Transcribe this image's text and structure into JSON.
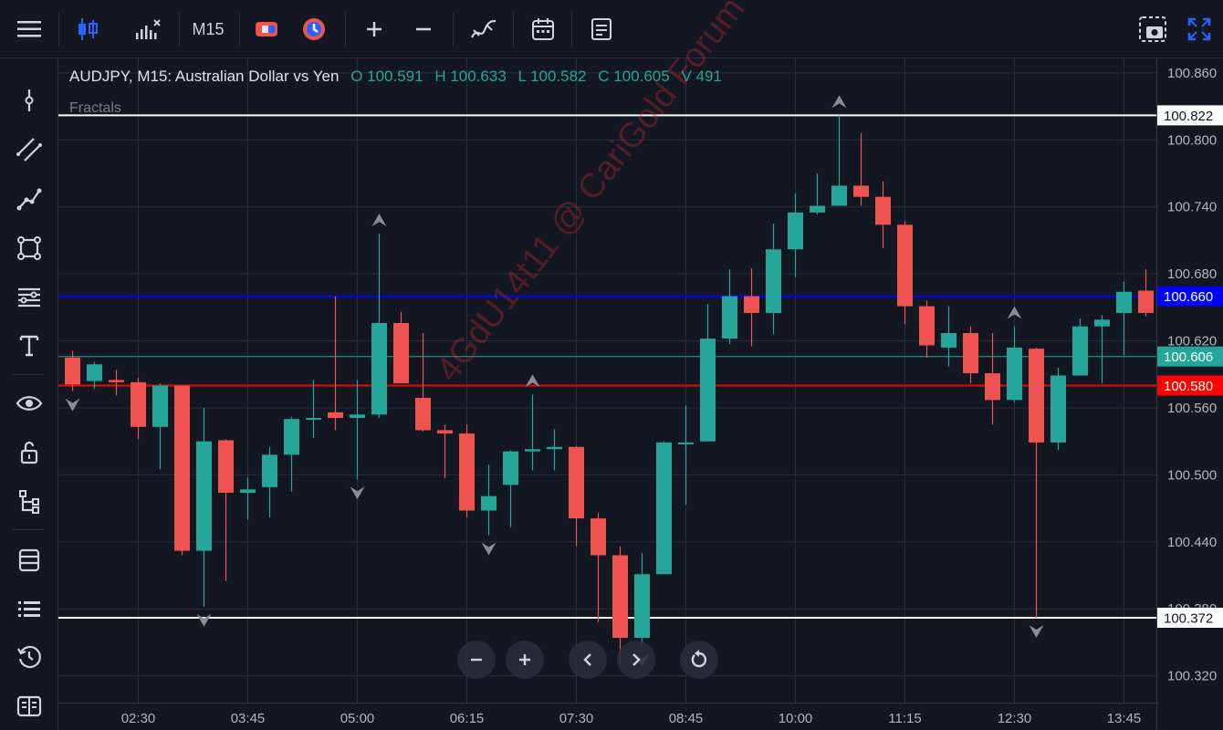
{
  "toolbar": {
    "timeframe": "M15"
  },
  "legend": {
    "symbol": "AUDJPY, M15: Australian Dollar vs Yen",
    "open": "O 100.591",
    "high": "H 100.633",
    "low": "L 100.582",
    "close": "C 100.605",
    "volume": "V 491"
  },
  "indicator_label": "Fractals",
  "watermark": "4GdU14t11 @ CariGold Forum",
  "price_labels": [
    {
      "text": "100.822",
      "value": 100.822,
      "bg": "#ffffff",
      "fg": "#131722",
      "line": "#ffffff"
    },
    {
      "text": "100.660",
      "value": 100.66,
      "bg": "#0000ff",
      "fg": "#ffffff",
      "line": "#0000ff"
    },
    {
      "text": "100.606",
      "value": 100.606,
      "bg": "#26a69a",
      "fg": "#ffffff",
      "line": "#26a69a"
    },
    {
      "text": "100.580",
      "value": 100.58,
      "bg": "#ff0000",
      "fg": "#ffffff",
      "line": "#ff0000"
    },
    {
      "text": "100.372",
      "value": 100.372,
      "bg": "#ffffff",
      "fg": "#131722",
      "line": "#ffffff"
    }
  ],
  "colors": {
    "up": "#26a69a",
    "down": "#ef5350",
    "grid": "#2a2e39",
    "axis_text": "#b2b5be",
    "bg": "#131722"
  },
  "chart_data": {
    "type": "candlestick",
    "ylim": [
      100.296,
      100.873
    ],
    "y_ticks": [
      100.86,
      100.8,
      100.74,
      100.68,
      100.62,
      100.56,
      100.5,
      100.44,
      100.38,
      100.32
    ],
    "y_tick_labels": [
      "100.860",
      "100.800",
      "100.740",
      "100.680",
      "100.620",
      "100.560",
      "100.500",
      "100.440",
      "100.380",
      "100.320"
    ],
    "x_ticks": [
      {
        "label": "02:30",
        "index": 3
      },
      {
        "label": "03:45",
        "index": 8
      },
      {
        "label": "05:00",
        "index": 13
      },
      {
        "label": "06:15",
        "index": 18
      },
      {
        "label": "07:30",
        "index": 23
      },
      {
        "label": "08:45",
        "index": 28
      },
      {
        "label": "10:00",
        "index": 33
      },
      {
        "label": "11:15",
        "index": 38
      },
      {
        "label": "12:30",
        "index": 43
      },
      {
        "label": "13:45",
        "index": 48
      }
    ],
    "candles": [
      [
        100.605,
        100.581,
        100.611,
        100.575
      ],
      [
        100.584,
        100.599,
        100.601,
        100.577
      ],
      [
        100.585,
        100.583,
        100.594,
        100.571
      ],
      [
        100.583,
        100.543,
        100.587,
        100.532
      ],
      [
        100.543,
        100.58,
        100.582,
        100.505
      ],
      [
        100.58,
        100.432,
        100.58,
        100.428
      ],
      [
        100.432,
        100.53,
        100.56,
        100.382
      ],
      [
        100.531,
        100.484,
        100.532,
        100.405
      ],
      [
        100.484,
        100.487,
        100.498,
        100.46
      ],
      [
        100.489,
        100.518,
        100.525,
        100.462
      ],
      [
        100.518,
        100.55,
        100.552,
        100.485
      ],
      [
        100.55,
        100.551,
        100.585,
        100.533
      ],
      [
        100.556,
        100.551,
        100.66,
        100.54
      ],
      [
        100.551,
        100.554,
        100.585,
        100.496
      ],
      [
        100.554,
        100.636,
        100.716,
        100.551
      ],
      [
        100.636,
        100.582,
        100.646,
        100.582
      ],
      [
        100.569,
        100.54,
        100.627,
        100.539
      ],
      [
        100.54,
        100.537,
        100.545,
        100.497
      ],
      [
        100.537,
        100.468,
        100.545,
        100.462
      ],
      [
        100.468,
        100.481,
        100.509,
        100.446
      ],
      [
        100.491,
        100.521,
        100.522,
        100.453
      ],
      [
        100.521,
        100.523,
        100.572,
        100.504
      ],
      [
        100.523,
        100.525,
        100.541,
        100.504
      ],
      [
        100.525,
        100.461,
        100.526,
        100.436
      ],
      [
        100.461,
        100.428,
        100.466,
        100.368
      ],
      [
        100.428,
        100.354,
        100.436,
        100.331
      ],
      [
        100.354,
        100.411,
        100.43,
        100.346
      ],
      [
        100.411,
        100.529,
        100.53,
        100.411
      ],
      [
        100.529,
        100.529,
        100.562,
        100.473
      ],
      [
        100.53,
        100.622,
        100.653,
        100.53
      ],
      [
        100.622,
        100.66,
        100.684,
        100.617
      ],
      [
        100.66,
        100.645,
        100.685,
        100.615
      ],
      [
        100.645,
        100.702,
        100.725,
        100.626
      ],
      [
        100.702,
        100.735,
        100.752,
        100.677
      ],
      [
        100.735,
        100.741,
        100.77,
        100.733
      ],
      [
        100.741,
        100.759,
        100.822,
        100.743
      ],
      [
        100.759,
        100.749,
        100.806,
        100.741
      ],
      [
        100.749,
        100.724,
        100.763,
        100.703
      ],
      [
        100.724,
        100.651,
        100.727,
        100.635
      ],
      [
        100.651,
        100.616,
        100.656,
        100.605
      ],
      [
        100.614,
        100.627,
        100.651,
        100.597
      ],
      [
        100.627,
        100.591,
        100.633,
        100.582
      ],
      [
        100.591,
        100.567,
        100.627,
        100.545
      ],
      [
        100.567,
        100.614,
        100.633,
        100.565
      ],
      [
        100.613,
        100.529,
        100.614,
        100.372
      ],
      [
        100.529,
        100.589,
        100.596,
        100.522
      ],
      [
        100.589,
        100.633,
        100.64,
        100.589
      ],
      [
        100.633,
        100.639,
        100.643,
        100.582
      ],
      [
        100.645,
        100.664,
        100.673,
        100.607
      ],
      [
        100.665,
        100.645,
        100.684,
        100.642
      ]
    ],
    "fractals_up_index": [
      14,
      21,
      35,
      43
    ],
    "fractals_down_index": [
      0,
      6,
      13,
      19,
      26,
      44
    ]
  }
}
